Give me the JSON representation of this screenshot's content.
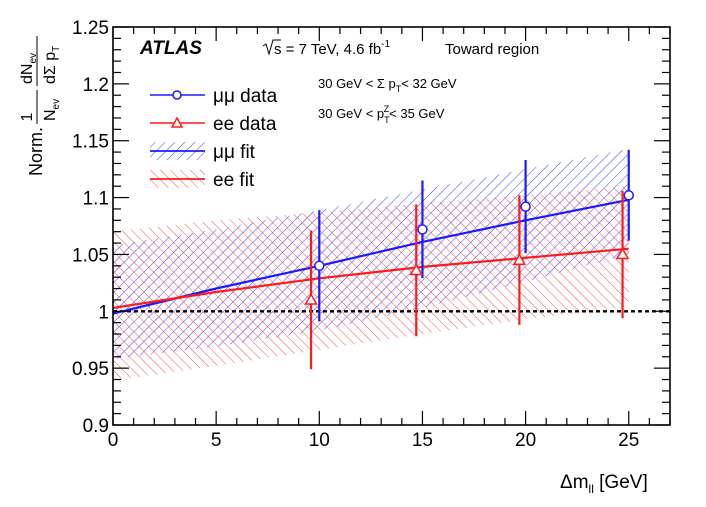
{
  "chart_data": {
    "type": "scatter",
    "experiment": "ATLAS",
    "energy_label": "s = 7 TeV, 4.6 fb",
    "energy_sup": "-1",
    "region_label": "Toward region",
    "cut1": {
      "pre": "30 GeV < Σ p",
      "sub": "T",
      "post": "< 32 GeV"
    },
    "cut2": {
      "pre": "30 GeV < p",
      "sub": "T",
      "sup": "Z",
      "post": "< 35 GeV"
    },
    "xlabel": {
      "main": "Δm",
      "sub": "ll",
      "unit": " [GeV]"
    },
    "ylabel": {
      "norm": "Norm.",
      "one": "1",
      "nev": "N",
      "nev_sub": "ev",
      "dnev": "dN",
      "dnev_sub": "ev",
      "dsum": "dΣ p",
      "dsum_sub": "T"
    },
    "xlim": [
      0,
      27
    ],
    "ylim": [
      0.9,
      1.25
    ],
    "xticks": [
      0,
      5,
      10,
      15,
      20,
      25
    ],
    "xtick_labels": [
      "0",
      "5",
      "10",
      "15",
      "20",
      "25"
    ],
    "yticks": [
      0.9,
      0.95,
      1.0,
      1.05,
      1.1,
      1.15,
      1.2,
      1.25
    ],
    "ytick_labels": [
      "0.9",
      "0.95",
      "1",
      "1.05",
      "1.1",
      "1.15",
      "1.2",
      "1.25"
    ],
    "reference_line": 1.0,
    "legend": [
      {
        "key": "mumu_data",
        "label": "μμ data"
      },
      {
        "key": "ee_data",
        "label": "ee data"
      },
      {
        "key": "mumu_fit",
        "label": "μμ fit"
      },
      {
        "key": "ee_fit",
        "label": "ee fit"
      }
    ],
    "series": [
      {
        "name": "μμ data",
        "key": "mumu_data",
        "marker": "circle",
        "color": "#1a1aff",
        "x": [
          10.0,
          15.0,
          20.0,
          25.0
        ],
        "y": [
          1.04,
          1.072,
          1.092,
          1.102
        ],
        "err": [
          0.049,
          0.043,
          0.041,
          0.04
        ]
      },
      {
        "name": "ee data",
        "key": "ee_data",
        "marker": "triangle",
        "color": "#ff1a1a",
        "x": [
          9.6,
          14.7,
          19.7,
          24.7
        ],
        "y": [
          1.01,
          1.036,
          1.045,
          1.05
        ],
        "err": [
          0.061,
          0.058,
          0.057,
          0.056
        ]
      }
    ],
    "fits": [
      {
        "name": "μμ fit",
        "key": "mumu_fit",
        "color": "#1a1aff",
        "x": [
          0,
          5,
          10,
          15,
          20,
          25
        ],
        "y": [
          0.998,
          1.02,
          1.04,
          1.061,
          1.08,
          1.098
        ],
        "band_low": [
          0.958,
          0.969,
          0.983,
          1.003,
          1.026,
          1.05
        ],
        "band_high": [
          1.058,
          1.072,
          1.089,
          1.107,
          1.125,
          1.143
        ]
      },
      {
        "name": "ee fit",
        "key": "ee_fit",
        "color": "#ff1a1a",
        "x": [
          0,
          5,
          10,
          15,
          20,
          25
        ],
        "y": [
          1.003,
          1.017,
          1.029,
          1.039,
          1.047,
          1.055
        ],
        "band_low": [
          0.939,
          0.952,
          0.966,
          0.98,
          0.993,
          1.004
        ],
        "band_high": [
          1.07,
          1.08,
          1.087,
          1.095,
          1.102,
          1.11
        ]
      }
    ]
  }
}
